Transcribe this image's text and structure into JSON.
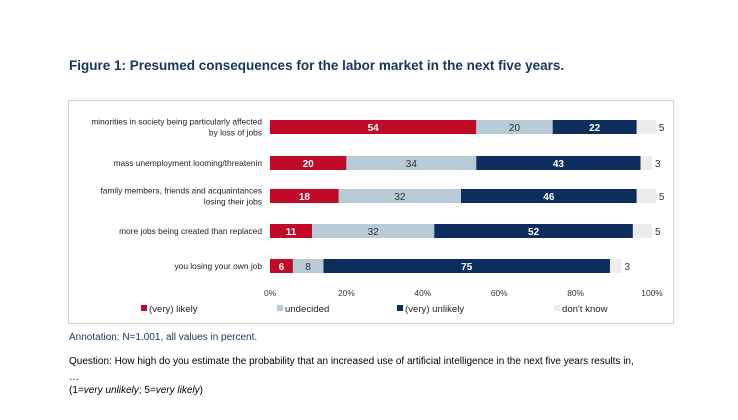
{
  "title": "Figure 1: Presumed consequences for the labor market in the next five years.",
  "annotation": "Annotation: N=1.001, all values in percent.",
  "question": "Question: How high do you estimate the probability that an increased use of artificial intelligence in the next five years results in,",
  "ellipsis": "…",
  "scale": {
    "prefix": "(1=",
    "low": "very unlikely",
    "mid": "; 5=",
    "high": "very likely",
    "suffix": ")"
  },
  "chart_data": {
    "type": "bar",
    "orientation": "horizontal",
    "stacked": true,
    "categories": [
      [
        "minorities in society being particularly affected",
        "by loss of jobs"
      ],
      [
        "mass unemployment looming/threatenin"
      ],
      [
        "family members, friends and acquaintances",
        "losing their jobs"
      ],
      [
        "more jobs being created than replaced"
      ],
      [
        "you losing your own job"
      ]
    ],
    "series": [
      {
        "name": "(very) likely",
        "color": "#c00a27",
        "values": [
          54,
          20,
          18,
          11,
          6
        ]
      },
      {
        "name": "undecided",
        "color": "#b8cad6",
        "values": [
          20,
          34,
          32,
          32,
          8
        ]
      },
      {
        "name": "(very) unlikely",
        "color": "#0d2e5c",
        "values": [
          22,
          43,
          46,
          52,
          75
        ]
      },
      {
        "name": "don't know",
        "color": "#ececec",
        "values": [
          5,
          3,
          5,
          5,
          3
        ]
      }
    ],
    "xlim": [
      0,
      100
    ],
    "xticks": [
      "0%",
      "20%",
      "40%",
      "60%",
      "80%",
      "100%"
    ],
    "xtick_values": [
      0,
      20,
      40,
      60,
      80,
      100
    ],
    "grid": false,
    "legend_position": "bottom"
  }
}
